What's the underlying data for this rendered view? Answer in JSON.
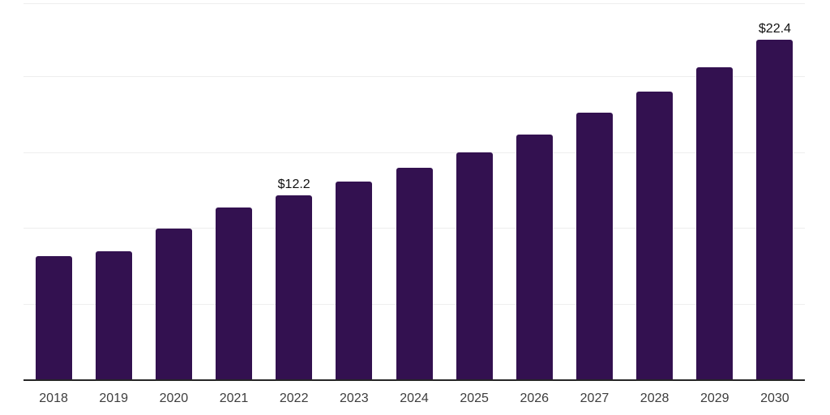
{
  "chart_data": {
    "type": "bar",
    "title": "",
    "xlabel": "",
    "ylabel": "",
    "categories": [
      "2018",
      "2019",
      "2020",
      "2021",
      "2022",
      "2023",
      "2024",
      "2025",
      "2026",
      "2027",
      "2028",
      "2029",
      "2030"
    ],
    "values": [
      8.2,
      8.5,
      10.0,
      11.4,
      12.2,
      13.1,
      14.0,
      15.0,
      16.2,
      17.6,
      19.0,
      20.6,
      22.4
    ],
    "data_labels": [
      "",
      "",
      "",
      "",
      "$12.2",
      "",
      "",
      "",
      "",
      "",
      "",
      "",
      "$22.4"
    ],
    "ylim": [
      0,
      24.85
    ],
    "gridline_values": [
      5,
      10,
      15,
      20
    ],
    "grid": "horizontal",
    "legend_position": "none",
    "colors": {
      "bar": "#331150",
      "gridline": "#eeeeee",
      "axis_line": "#262626",
      "tick_label": "#3d3d3d",
      "data_label": "#111111",
      "background": "#ffffff"
    }
  }
}
